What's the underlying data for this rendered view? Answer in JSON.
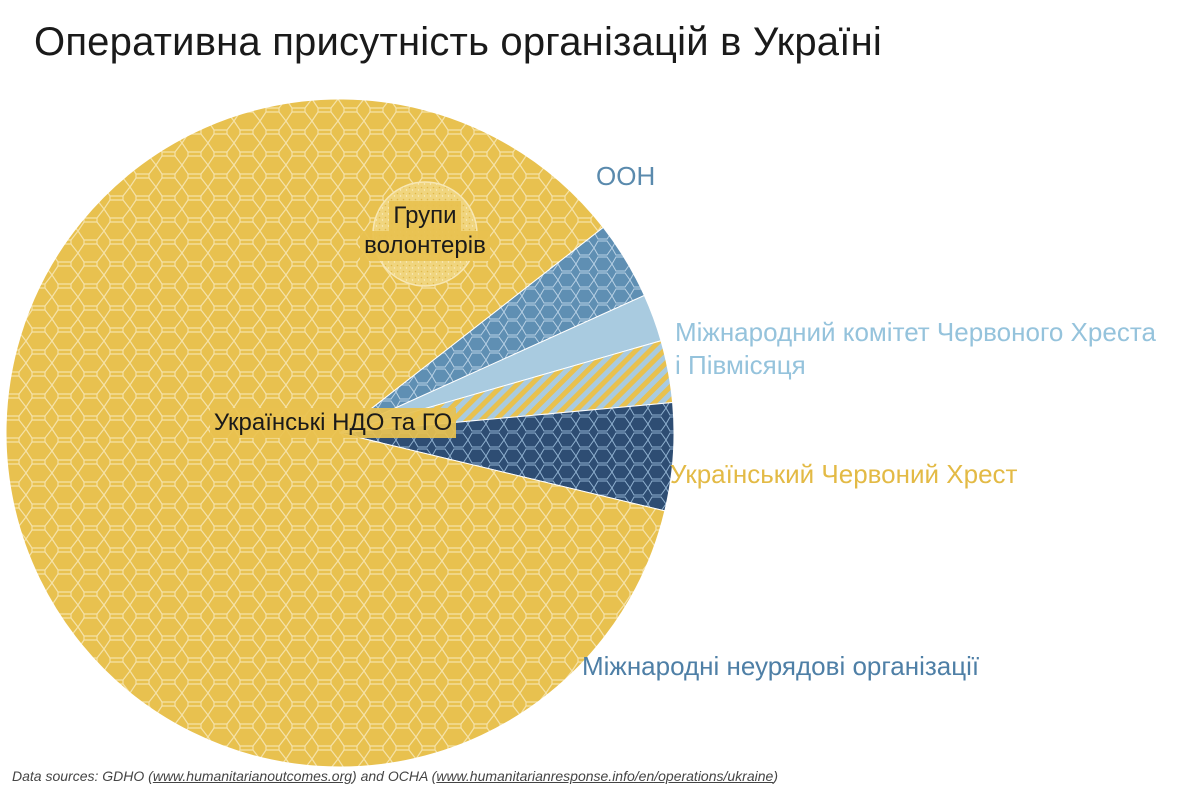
{
  "title": "Оперативна присутність організацій в Україні",
  "chart_data": {
    "type": "pie",
    "title": "Оперативна присутність організацій в Україні",
    "slices": [
      {
        "name": "ООН",
        "value": 3.8,
        "color": "#5f8fb3",
        "label_color": "#5a8aad"
      },
      {
        "name": "Міжнародний комітет Червоного Хреста і Півмісяця",
        "value": 2.3,
        "color": "#a9cbe0",
        "label_color": "#95c3dc"
      },
      {
        "name": "Український Червоний Хрест",
        "value": 3.0,
        "color": "#e8c14f",
        "label_color": "#e3ba45",
        "pattern": "striped"
      },
      {
        "name": "Міжнародні неурядові організації",
        "value": 5.2,
        "color": "#2e4d73",
        "label_color": "#4e7fa6"
      },
      {
        "name": "Українські НДО та ГО",
        "value": 85.7,
        "color": "#e8c14f",
        "label_color": "#1a1a1a"
      }
    ],
    "inset": {
      "name": "Групи волонтерів",
      "color": "#f0d57e"
    },
    "legend": "direct labels"
  },
  "labels": {
    "un": "ООН",
    "icrc_line1": "Міжнародний комітет Червоного Хреста",
    "icrc_line2": "і Півмісяця",
    "urc": "Український Червоний Хрест",
    "ingo": "Міжнародні неурядові організації",
    "ngo": "Українські НДО та ГО",
    "volunteers_line1": "Групи",
    "volunteers_line2": "волонтерів"
  },
  "source": {
    "prefix": "Data sources: GDHO (",
    "link1": "www.humanitarianoutcomes.org",
    "middle": ") and OCHA (",
    "link2": "www.humanitarianresponse.info/en/operations/ukraine",
    "suffix": ")"
  }
}
